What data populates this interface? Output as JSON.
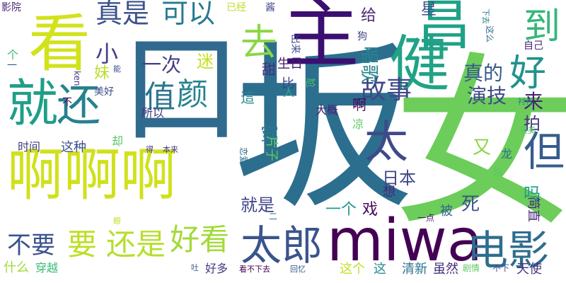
{
  "words": [
    {
      "text": "坂",
      "color": "#2c6e8e"
    },
    {
      "text": "女",
      "color": "#6ccd5a"
    },
    {
      "text": "啊啊啊",
      "color": "#d0e11c"
    },
    {
      "text": "口",
      "color": "#306a8e"
    },
    {
      "text": "miwa",
      "color": "#440154"
    },
    {
      "text": "看",
      "color": "#d2e21b"
    },
    {
      "text": "主",
      "color": "#3b0f70"
    },
    {
      "text": "健",
      "color": "#20a386"
    },
    {
      "text": "昌",
      "color": "#1fa187"
    },
    {
      "text": "就",
      "color": "#1f9e89"
    },
    {
      "text": "还",
      "color": "#26818e"
    },
    {
      "text": "太郎",
      "color": "#3a548c"
    },
    {
      "text": "电影",
      "color": "#2e6d8e"
    },
    {
      "text": "要",
      "color": "#bddf26"
    },
    {
      "text": "还是",
      "color": "#b5de2b"
    },
    {
      "text": "好看",
      "color": "#a2da37"
    },
    {
      "text": "去",
      "color": "#8bd646"
    },
    {
      "text": "太",
      "color": "#3e4a89"
    },
    {
      "text": "但",
      "color": "#365c8d"
    },
    {
      "text": "好",
      "color": "#20928c"
    },
    {
      "text": "颜",
      "color": "#26828e"
    },
    {
      "text": "值",
      "color": "#2a768e"
    },
    {
      "text": "到",
      "color": "#35b779"
    },
    {
      "text": "真是",
      "color": "#3b528b"
    },
    {
      "text": "可以",
      "color": "#297b8e"
    },
    {
      "text": "故事",
      "color": "#3f4788"
    },
    {
      "text": "不要",
      "color": "#3a538b"
    },
    {
      "text": "小",
      "color": "#424086"
    },
    {
      "text": "迷",
      "color": "#c8e020"
    },
    {
      "text": "妹",
      "color": "#b8de29"
    },
    {
      "text": "一次",
      "color": "#433e85"
    },
    {
      "text": "真的",
      "color": "#38598c"
    },
    {
      "text": "演技",
      "color": "#3e4989"
    },
    {
      "text": "来",
      "color": "#482173"
    },
    {
      "text": "拍",
      "color": "#453781"
    },
    {
      "text": "日本",
      "color": "#3f4889"
    },
    {
      "text": "死",
      "color": "#3b518b"
    },
    {
      "text": "就是",
      "color": "#414487"
    },
    {
      "text": "吗",
      "color": "#1e9b8a"
    },
    {
      "text": "一个",
      "color": "#1f9a8a"
    },
    {
      "text": "戏",
      "color": "#46075a"
    },
    {
      "text": "穿",
      "color": "#2a788e"
    },
    {
      "text": "这",
      "color": "#23898e"
    },
    {
      "text": "唱歌",
      "color": "#25858e"
    },
    {
      "text": "给",
      "color": "#482878"
    },
    {
      "text": "星",
      "color": "#3c4f8a"
    },
    {
      "text": "甜",
      "color": "#46307e"
    },
    {
      "text": "生日",
      "color": "#481b6d"
    },
    {
      "text": "比",
      "color": "#423f85"
    },
    {
      "text": "這",
      "color": "#23898e"
    },
    {
      "text": "时间",
      "color": "#433d84"
    },
    {
      "text": "这种",
      "color": "#3b518b"
    },
    {
      "text": "什么",
      "color": "#a0da39"
    },
    {
      "text": "穿越",
      "color": "#3bbb75"
    },
    {
      "text": "好多",
      "color": "#453882"
    },
    {
      "text": "这个",
      "color": "#c2df23"
    },
    {
      "text": "清新",
      "color": "#2d718e"
    },
    {
      "text": "虽然",
      "color": "#472c7a"
    },
    {
      "text": "天使",
      "color": "#46337f"
    },
    {
      "text": "被",
      "color": "#33638d"
    },
    {
      "text": "又",
      "color": "#89d548"
    },
    {
      "text": "龙",
      "color": "#2e6f8e"
    },
    {
      "text": "片子",
      "color": "#60ca60"
    },
    {
      "text": "所以",
      "color": "#453781"
    },
    {
      "text": "大概",
      "color": "#482475"
    },
    {
      "text": "影院",
      "color": "#482979"
    },
    {
      "text": "个",
      "color": "#3aba76"
    },
    {
      "text": "已经",
      "color": "#c0df25"
    },
    {
      "text": "酱",
      "color": "#404588"
    },
    {
      "text": "狗",
      "color": "#414287"
    },
    {
      "text": "啊",
      "color": "#440154"
    },
    {
      "text": "想",
      "color": "#482576"
    },
    {
      "text": "简直",
      "color": "#472a7a"
    },
    {
      "text": "一点",
      "color": "#481467"
    },
    {
      "text": "美好",
      "color": "#3c4f8a"
    },
    {
      "text": "自己",
      "color": "#482677"
    },
    {
      "text": "人",
      "color": "#26ad81"
    },
    {
      "text": "却",
      "color": "#54c568"
    },
    {
      "text": "尬",
      "color": "#4ac16d"
    },
    {
      "text": "不",
      "color": "#460b5e"
    },
    {
      "text": "恋爱",
      "color": "#2e6e8e"
    },
    {
      "text": "凉",
      "color": "#5ec962"
    },
    {
      "text": "出来",
      "color": "#3e4a89"
    },
    {
      "text": "这么",
      "color": "#306a8e"
    },
    {
      "text": "一",
      "color": "#375b8d"
    },
    {
      "text": "剧情",
      "color": "#5cc863"
    },
    {
      "text": "不下",
      "color": "#3c508b"
    },
    {
      "text": "美美",
      "color": "#5ac864"
    },
    {
      "text": "看不下去",
      "color": "#440154"
    },
    {
      "text": "回忆",
      "color": "#375b8d"
    },
    {
      "text": "ken",
      "color": "#453781"
    },
    {
      "text": "能",
      "color": "#3b528b"
    },
    {
      "text": "得",
      "color": "#453882"
    },
    {
      "text": "本来",
      "color": "#443a83"
    },
    {
      "text": "眼",
      "color": "#c0df25"
    },
    {
      "text": "说",
      "color": "#5ac864"
    },
    {
      "text": "吐",
      "color": "#3b528b"
    },
    {
      "text": "衬衫",
      "color": "#25848e"
    },
    {
      "text": "下去",
      "color": "#25838e"
    },
    {
      "text": "二",
      "color": "#2c728e"
    }
  ]
}
